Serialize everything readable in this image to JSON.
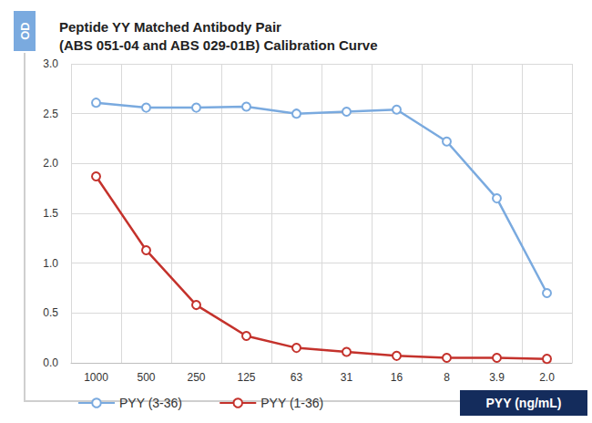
{
  "chart_data": {
    "type": "line",
    "title": "Peptide YY Matched Antibody Pair\n(ABS 051-04 and ABS 029-01B) Calibration Curve",
    "xlabel": "PYY (ng/mL)",
    "ylabel": "OD",
    "categories": [
      "1000",
      "500",
      "250",
      "125",
      "63",
      "31",
      "16",
      "8",
      "3.9",
      "2.0"
    ],
    "series": [
      {
        "name": "PYY (3-36)",
        "color": "#7aaadf",
        "marker": "circle",
        "values": [
          2.61,
          2.56,
          2.56,
          2.57,
          2.5,
          2.52,
          2.54,
          2.22,
          1.65,
          0.7
        ]
      },
      {
        "name": "PYY (1-36)",
        "color": "#c4322c",
        "marker": "circle",
        "values": [
          1.87,
          1.13,
          0.58,
          0.27,
          0.15,
          0.11,
          0.07,
          0.05,
          0.05,
          0.04
        ]
      }
    ],
    "ylim": [
      0,
      3
    ],
    "yticks": [
      {
        "value": 0,
        "label": "0.0"
      },
      {
        "value": 0.5,
        "label": "0.5"
      },
      {
        "value": 1,
        "label": "1.0"
      },
      {
        "value": 1.5,
        "label": "1.5"
      },
      {
        "value": 2,
        "label": "2.0"
      },
      {
        "value": 2.5,
        "label": "2.5"
      },
      {
        "value": 3,
        "label": "3.0"
      }
    ],
    "grid": true,
    "legend": "bottom"
  }
}
